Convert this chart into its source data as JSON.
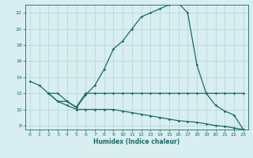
{
  "title": "",
  "xlabel": "Humidex (Indice chaleur)",
  "bg_color": "#d8eef0",
  "grid_color": "#b8d8d8",
  "line_color": "#1a6b6b",
  "xlim": [
    -0.5,
    23.5
  ],
  "ylim": [
    7.5,
    23.0
  ],
  "xticks": [
    0,
    1,
    2,
    3,
    4,
    5,
    6,
    7,
    8,
    9,
    10,
    11,
    12,
    13,
    14,
    15,
    16,
    17,
    18,
    19,
    20,
    21,
    22,
    23
  ],
  "yticks": [
    8,
    10,
    12,
    14,
    16,
    18,
    20,
    22
  ],
  "line1_x": [
    0,
    1,
    2,
    3,
    4,
    5,
    6,
    7,
    8,
    9,
    10,
    11,
    12,
    13,
    14,
    15,
    16,
    17,
    18,
    19,
    20,
    21,
    22,
    23
  ],
  "line1_y": [
    13.5,
    13.0,
    12.0,
    11.0,
    11.0,
    10.2,
    11.8,
    13.0,
    15.0,
    17.5,
    18.5,
    20.0,
    21.5,
    22.0,
    22.5,
    23.0,
    23.2,
    22.0,
    15.5,
    12.0,
    10.5,
    9.8,
    9.3,
    7.5
  ],
  "line2_x": [
    2,
    3,
    4,
    5,
    6,
    7,
    8,
    9,
    10,
    11,
    12,
    13,
    14,
    15,
    16,
    17,
    18,
    19,
    20,
    21,
    22,
    23
  ],
  "line2_y": [
    12.0,
    12.0,
    11.0,
    10.3,
    12.0,
    12.0,
    12.0,
    12.0,
    12.0,
    12.0,
    12.0,
    12.0,
    12.0,
    12.0,
    12.0,
    12.0,
    12.0,
    12.0,
    12.0,
    12.0,
    12.0,
    12.0
  ],
  "line3_x": [
    2,
    3,
    4,
    5,
    6,
    7,
    8,
    9,
    10,
    11,
    12,
    13,
    14,
    15,
    16,
    17,
    18,
    19,
    20,
    21,
    22,
    23
  ],
  "line3_y": [
    12.0,
    11.0,
    10.5,
    10.0,
    10.0,
    10.0,
    10.0,
    10.0,
    9.8,
    9.6,
    9.4,
    9.2,
    9.0,
    8.8,
    8.6,
    8.5,
    8.4,
    8.2,
    8.0,
    7.9,
    7.7,
    7.5
  ]
}
